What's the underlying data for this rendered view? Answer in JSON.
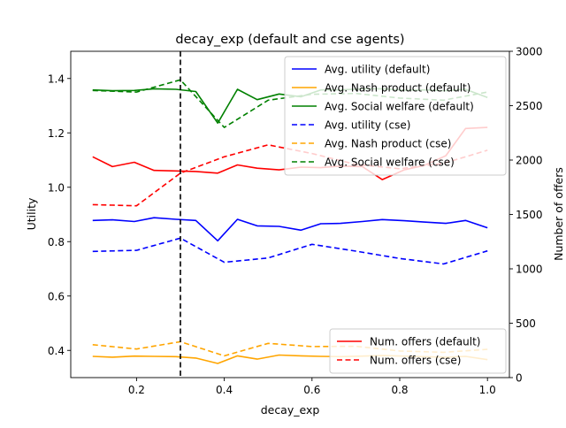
{
  "chart_data": {
    "type": "line",
    "title": "decay_exp (default and cse agents)",
    "xlabel": "decay_exp",
    "ylabel_left": "Utility",
    "ylabel_right": "Number of offers",
    "xlim": [
      0.05,
      1.05
    ],
    "ylim_left": [
      0.3,
      1.5
    ],
    "ylim_right": [
      0,
      3000
    ],
    "xticks": [
      0.2,
      0.4,
      0.6,
      0.8,
      1.0
    ],
    "xtick_labels": [
      "0.2",
      "0.4",
      "0.6",
      "0.8",
      "1.0"
    ],
    "yticks_left": [
      0.4,
      0.6,
      0.8,
      1.0,
      1.2,
      1.4
    ],
    "ytick_labels_left": [
      "0.4",
      "0.6",
      "0.8",
      "1.0",
      "1.2",
      "1.4"
    ],
    "yticks_right": [
      0,
      500,
      1000,
      1500,
      2000,
      2500,
      3000
    ],
    "ytick_labels_right": [
      "0",
      "500",
      "1000",
      "1500",
      "2000",
      "2500",
      "3000"
    ],
    "vline_x": 0.3,
    "legend_left": "top-right",
    "legend_right": "bottom-right",
    "series": [
      {
        "name": "Avg. utility (default)",
        "axis": "left",
        "color": "#0000ff",
        "dash": "solid",
        "x": [
          0.1,
          0.145,
          0.195,
          0.24,
          0.29,
          0.335,
          0.385,
          0.43,
          0.475,
          0.525,
          0.575,
          0.62,
          0.665,
          0.715,
          0.76,
          0.81,
          0.855,
          0.905,
          0.95,
          1.0
        ],
        "y": [
          0.878,
          0.88,
          0.874,
          0.888,
          0.882,
          0.878,
          0.803,
          0.882,
          0.858,
          0.856,
          0.842,
          0.866,
          0.867,
          0.874,
          0.881,
          0.877,
          0.872,
          0.867,
          0.878,
          0.851
        ]
      },
      {
        "name": "Avg. Nash product (default)",
        "axis": "left",
        "color": "#ffa500",
        "dash": "solid",
        "x": [
          0.1,
          0.145,
          0.195,
          0.24,
          0.29,
          0.335,
          0.385,
          0.43,
          0.475,
          0.525,
          0.575,
          0.62,
          0.665,
          0.715,
          0.76,
          0.81,
          0.855,
          0.905,
          0.95,
          1.0
        ],
        "y": [
          0.378,
          0.375,
          0.379,
          0.378,
          0.377,
          0.372,
          0.352,
          0.38,
          0.368,
          0.383,
          0.38,
          0.378,
          0.377,
          0.379,
          0.381,
          0.379,
          0.377,
          0.375,
          0.378,
          0.366
        ]
      },
      {
        "name": "Avg. Social welfare (default)",
        "axis": "left",
        "color": "#008000",
        "dash": "solid",
        "x": [
          0.1,
          0.145,
          0.195,
          0.24,
          0.29,
          0.335,
          0.385,
          0.43,
          0.475,
          0.525,
          0.575,
          0.62,
          0.665,
          0.715,
          0.76,
          0.81,
          0.855,
          0.905,
          0.95,
          1.0
        ],
        "y": [
          1.358,
          1.355,
          1.356,
          1.362,
          1.36,
          1.352,
          1.236,
          1.36,
          1.322,
          1.343,
          1.333,
          1.358,
          1.358,
          1.362,
          1.362,
          1.357,
          1.358,
          1.355,
          1.36,
          1.33
        ]
      },
      {
        "name": "Avg. utility (cse)",
        "axis": "left",
        "color": "#0000ff",
        "dash": "dashed",
        "x": [
          0.1,
          0.2,
          0.3,
          0.4,
          0.5,
          0.6,
          0.7,
          0.8,
          0.9,
          1.0
        ],
        "y": [
          0.764,
          0.768,
          0.813,
          0.724,
          0.74,
          0.79,
          0.765,
          0.738,
          0.718,
          0.766
        ]
      },
      {
        "name": "Avg. Nash product (cse)",
        "axis": "left",
        "color": "#ffa500",
        "dash": "dashed",
        "x": [
          0.1,
          0.2,
          0.3,
          0.4,
          0.5,
          0.6,
          0.7,
          0.8,
          0.9,
          1.0
        ],
        "y": [
          0.421,
          0.405,
          0.432,
          0.38,
          0.426,
          0.414,
          0.415,
          0.398,
          0.393,
          0.404
        ]
      },
      {
        "name": "Avg. Social welfare (cse)",
        "axis": "left",
        "color": "#008000",
        "dash": "dashed",
        "x": [
          0.1,
          0.2,
          0.3,
          0.4,
          0.5,
          0.6,
          0.7,
          0.8,
          0.9,
          1.0
        ],
        "y": [
          1.356,
          1.35,
          1.395,
          1.22,
          1.32,
          1.342,
          1.345,
          1.328,
          1.32,
          1.35
        ]
      },
      {
        "name": "Num. offers (default)",
        "axis": "right",
        "color": "#ff0000",
        "dash": "solid",
        "x": [
          0.1,
          0.145,
          0.195,
          0.24,
          0.29,
          0.335,
          0.385,
          0.43,
          0.475,
          0.525,
          0.575,
          0.62,
          0.665,
          0.715,
          0.76,
          0.81,
          0.855,
          0.905,
          0.95,
          1.0
        ],
        "y": [
          2030,
          1940,
          1980,
          1905,
          1900,
          1895,
          1880,
          1955,
          1925,
          1910,
          1935,
          1930,
          1945,
          1940,
          1820,
          1910,
          1950,
          2040,
          2290,
          2300
        ]
      },
      {
        "name": "Num. offers (cse)",
        "axis": "right",
        "color": "#ff0000",
        "dash": "dashed",
        "x": [
          0.1,
          0.2,
          0.3,
          0.4,
          0.5,
          0.6,
          0.7,
          0.8,
          0.9,
          1.0
        ],
        "y": [
          1590,
          1580,
          1880,
          2030,
          2140,
          2060,
          1960,
          1920,
          1970,
          2090
        ]
      }
    ]
  }
}
